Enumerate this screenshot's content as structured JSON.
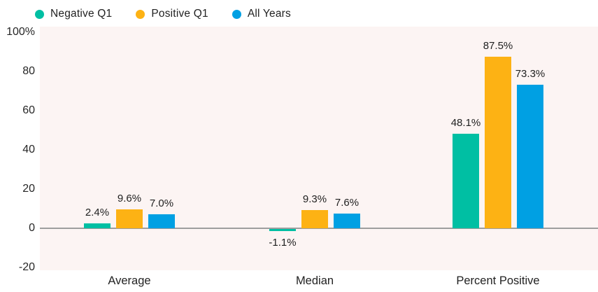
{
  "chart_data": {
    "type": "bar",
    "title": "",
    "categories": [
      "Average",
      "Median",
      "Percent Positive"
    ],
    "series": [
      {
        "name": "Negative Q1",
        "color": "#00bfa3",
        "values": [
          2.4,
          -1.1,
          48.1
        ],
        "labels": [
          "2.4%",
          "-1.1%",
          "48.1%"
        ]
      },
      {
        "name": "Positive Q1",
        "color": "#fdb214",
        "values": [
          9.6,
          9.3,
          87.5
        ],
        "labels": [
          "9.6%",
          "9.3%",
          "87.5%"
        ]
      },
      {
        "name": "All Years",
        "color": "#00a0e3",
        "values": [
          7.0,
          7.6,
          73.3
        ],
        "labels": [
          "7.0%",
          "7.6%",
          "73.3%"
        ]
      }
    ],
    "y_axis": {
      "min": -20,
      "max": 100,
      "ticks": [
        100,
        80,
        60,
        40,
        20,
        0,
        -20
      ],
      "tick_labels": [
        "100%",
        "80",
        "60",
        "40",
        "20",
        "0",
        "-20"
      ]
    },
    "legend_position": "top",
    "grid": false,
    "colors": {
      "plot_background": "#fcf4f3",
      "axis_line": "#9e9e9e",
      "text": "#222222",
      "page_background": "#ffffff"
    }
  }
}
